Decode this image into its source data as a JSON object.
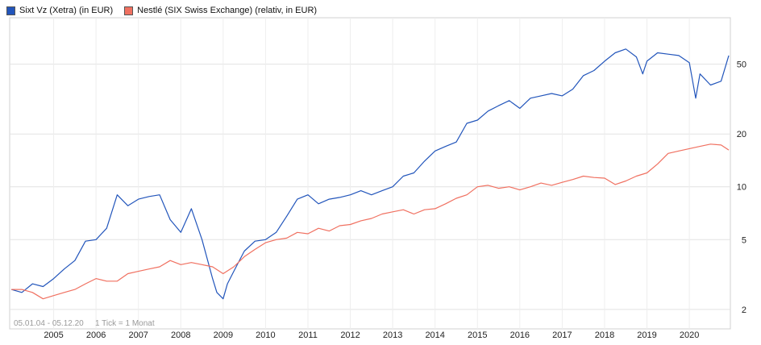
{
  "legend": [
    {
      "label": "Sixt Vz (Xetra) (in EUR)",
      "color": "#2255bb"
    },
    {
      "label": "Nestlé (SIX Swiss Exchange) (relativ, in EUR)",
      "color": "#f07060"
    }
  ],
  "footer": {
    "range": "05.01.04 - 05.12.20",
    "tick": "1 Tick = 1 Monat"
  },
  "chart_data": {
    "type": "line",
    "title": "",
    "xlabel": "",
    "ylabel": "",
    "yscale": "log",
    "ylim": [
      1.6,
      90
    ],
    "xlim": [
      2004.0,
      2020.93
    ],
    "grid": true,
    "legend_position": "top-left",
    "xticks": [
      2005,
      2006,
      2007,
      2008,
      2009,
      2010,
      2011,
      2012,
      2013,
      2014,
      2015,
      2016,
      2017,
      2018,
      2019,
      2020
    ],
    "xtick_labels": [
      "2005",
      "2006",
      "2007",
      "2008",
      "2009",
      "2010",
      "2011",
      "2012",
      "2013",
      "2014",
      "2015",
      "2016",
      "2017",
      "2018",
      "2019",
      "2020"
    ],
    "yticks": [
      2,
      5,
      10,
      20,
      50
    ],
    "ytick_labels": [
      "2",
      "5",
      "10",
      "20",
      "50"
    ],
    "series": [
      {
        "name": "Sixt Vz (Xetra) (in EUR)",
        "color": "#2255bb",
        "x": [
          2004.0,
          2004.25,
          2004.5,
          2004.75,
          2005.0,
          2005.25,
          2005.5,
          2005.75,
          2006.0,
          2006.25,
          2006.5,
          2006.75,
          2007.0,
          2007.25,
          2007.5,
          2007.75,
          2008.0,
          2008.25,
          2008.5,
          2008.75,
          2008.85,
          2009.0,
          2009.1,
          2009.25,
          2009.5,
          2009.75,
          2010.0,
          2010.25,
          2010.5,
          2010.75,
          2011.0,
          2011.25,
          2011.5,
          2011.75,
          2012.0,
          2012.25,
          2012.5,
          2012.75,
          2013.0,
          2013.25,
          2013.5,
          2013.75,
          2014.0,
          2014.25,
          2014.5,
          2014.75,
          2015.0,
          2015.25,
          2015.5,
          2015.75,
          2016.0,
          2016.25,
          2016.5,
          2016.75,
          2017.0,
          2017.25,
          2017.5,
          2017.75,
          2018.0,
          2018.25,
          2018.5,
          2018.75,
          2018.9,
          2019.0,
          2019.25,
          2019.5,
          2019.75,
          2020.0,
          2020.15,
          2020.25,
          2020.5,
          2020.75,
          2020.93
        ],
        "values": [
          2.6,
          2.5,
          2.8,
          2.7,
          3.0,
          3.4,
          3.8,
          4.9,
          5.0,
          5.8,
          9.0,
          7.8,
          8.5,
          8.8,
          9.0,
          6.5,
          5.5,
          7.5,
          5.0,
          3.0,
          2.5,
          2.3,
          2.8,
          3.3,
          4.3,
          4.9,
          5.0,
          5.5,
          6.8,
          8.5,
          9.0,
          8.0,
          8.5,
          8.7,
          9.0,
          9.5,
          9.0,
          9.5,
          10.0,
          11.5,
          12.0,
          14.0,
          16.0,
          17.0,
          18.0,
          23.0,
          24.0,
          27.0,
          29.0,
          31.0,
          28.0,
          32.0,
          33.0,
          34.0,
          33.0,
          36.0,
          43.0,
          46.0,
          52.0,
          58.0,
          61.0,
          55.0,
          44.0,
          52.0,
          58.0,
          57.0,
          56.0,
          51.0,
          32.0,
          44.0,
          38.0,
          40.0,
          56.0
        ]
      },
      {
        "name": "Nestlé (SIX Swiss Exchange) (relativ, in EUR)",
        "color": "#f07060",
        "x": [
          2004.0,
          2004.25,
          2004.5,
          2004.75,
          2005.0,
          2005.25,
          2005.5,
          2005.75,
          2006.0,
          2006.25,
          2006.5,
          2006.75,
          2007.0,
          2007.25,
          2007.5,
          2007.75,
          2008.0,
          2008.25,
          2008.5,
          2008.75,
          2009.0,
          2009.25,
          2009.5,
          2009.75,
          2010.0,
          2010.25,
          2010.5,
          2010.75,
          2011.0,
          2011.25,
          2011.5,
          2011.75,
          2012.0,
          2012.25,
          2012.5,
          2012.75,
          2013.0,
          2013.25,
          2013.5,
          2013.75,
          2014.0,
          2014.25,
          2014.5,
          2014.75,
          2015.0,
          2015.25,
          2015.5,
          2015.75,
          2016.0,
          2016.25,
          2016.5,
          2016.75,
          2017.0,
          2017.25,
          2017.5,
          2017.75,
          2018.0,
          2018.25,
          2018.5,
          2018.75,
          2019.0,
          2019.25,
          2019.5,
          2019.75,
          2020.0,
          2020.25,
          2020.5,
          2020.75,
          2020.93
        ],
        "values": [
          2.6,
          2.6,
          2.5,
          2.3,
          2.4,
          2.5,
          2.6,
          2.8,
          3.0,
          2.9,
          2.9,
          3.2,
          3.3,
          3.4,
          3.5,
          3.8,
          3.6,
          3.7,
          3.6,
          3.5,
          3.2,
          3.5,
          4.0,
          4.4,
          4.8,
          5.0,
          5.1,
          5.5,
          5.4,
          5.8,
          5.6,
          6.0,
          6.1,
          6.4,
          6.6,
          7.0,
          7.2,
          7.4,
          7.0,
          7.4,
          7.5,
          8.0,
          8.6,
          9.0,
          10.0,
          10.2,
          9.8,
          10.0,
          9.6,
          10.0,
          10.5,
          10.2,
          10.6,
          11.0,
          11.5,
          11.3,
          11.2,
          10.3,
          10.8,
          11.5,
          12.0,
          13.5,
          15.5,
          16.0,
          16.5,
          17.0,
          17.5,
          17.3,
          16.2
        ]
      }
    ]
  }
}
